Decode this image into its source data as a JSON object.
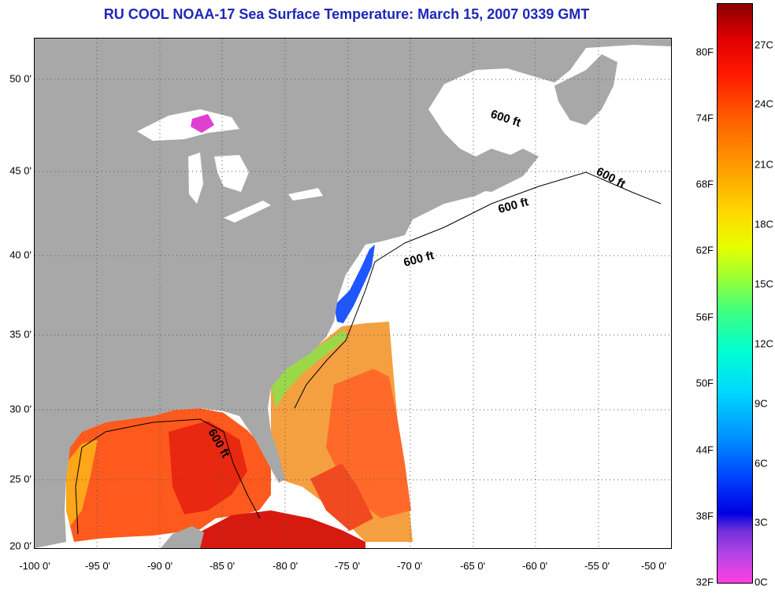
{
  "title": "RU COOL  NOAA-17  Sea Surface Temperature:  March 15, 2007 0339 GMT",
  "x_axis": {
    "ticks": [
      "-100 0'",
      "-95 0'",
      "-90 0'",
      "-85 0'",
      "-80 0'",
      "-75 0'",
      "-70 0'",
      "-65 0'",
      "-60 0'",
      "-55 0'",
      "-50 0'"
    ]
  },
  "y_axis": {
    "ticks": [
      "50 0'",
      "45 0'",
      "40 0'",
      "35 0'",
      "30 0'",
      "25 0'",
      "20 0'"
    ]
  },
  "colorbar": {
    "fahrenheit": [
      "80F",
      "74F",
      "68F",
      "62F",
      "56F",
      "50F",
      "44F",
      "38F",
      "32F"
    ],
    "celsius": [
      "27C",
      "24C",
      "21C",
      "18C",
      "15C",
      "12C",
      "9C",
      "6C",
      "3C",
      "0C"
    ]
  },
  "depth_contour_labels": [
    "600 ft",
    "600 ft",
    "600 ft",
    "600 ft",
    "600 ft"
  ],
  "colors": {
    "title": "#1f27b8",
    "land": "#a8a8a8",
    "no_data": "#ffffff"
  }
}
